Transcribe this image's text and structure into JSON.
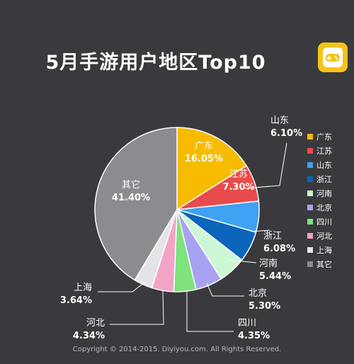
{
  "header": {
    "title": "5月手游用户地区Top10"
  },
  "footer": {
    "copyright": "Copyright © 2014-2015. Diyiyou.com. All Rights Reserved."
  },
  "chart_data": {
    "type": "pie",
    "title": "5月手游用户地区Top10",
    "legend_position": "right",
    "slices": [
      {
        "label": "广东",
        "value": 16.05,
        "value_text": "16.05%",
        "color": "#f7bb00"
      },
      {
        "label": "江苏",
        "value": 7.3,
        "value_text": "7.30%",
        "color": "#e84b4b"
      },
      {
        "label": "山东",
        "value": 6.1,
        "value_text": "6.10%",
        "color": "#3ea1f2"
      },
      {
        "label": "浙江",
        "value": 6.08,
        "value_text": "6.08%",
        "color": "#0b65ba"
      },
      {
        "label": "河南",
        "value": 5.44,
        "value_text": "5.44%",
        "color": "#cdf7d4"
      },
      {
        "label": "北京",
        "value": 5.3,
        "value_text": "5.30%",
        "color": "#a8a2f2"
      },
      {
        "label": "四川",
        "value": 4.35,
        "value_text": "4.35%",
        "color": "#7fe37c"
      },
      {
        "label": "河北",
        "value": 4.34,
        "value_text": "4.34%",
        "color": "#f2a3c6"
      },
      {
        "label": "上海",
        "value": 3.64,
        "value_text": "3.64%",
        "color": "#e4e4e8"
      },
      {
        "label": "其它",
        "value": 41.4,
        "value_text": "41.40%",
        "color": "#8b8b90"
      }
    ]
  }
}
